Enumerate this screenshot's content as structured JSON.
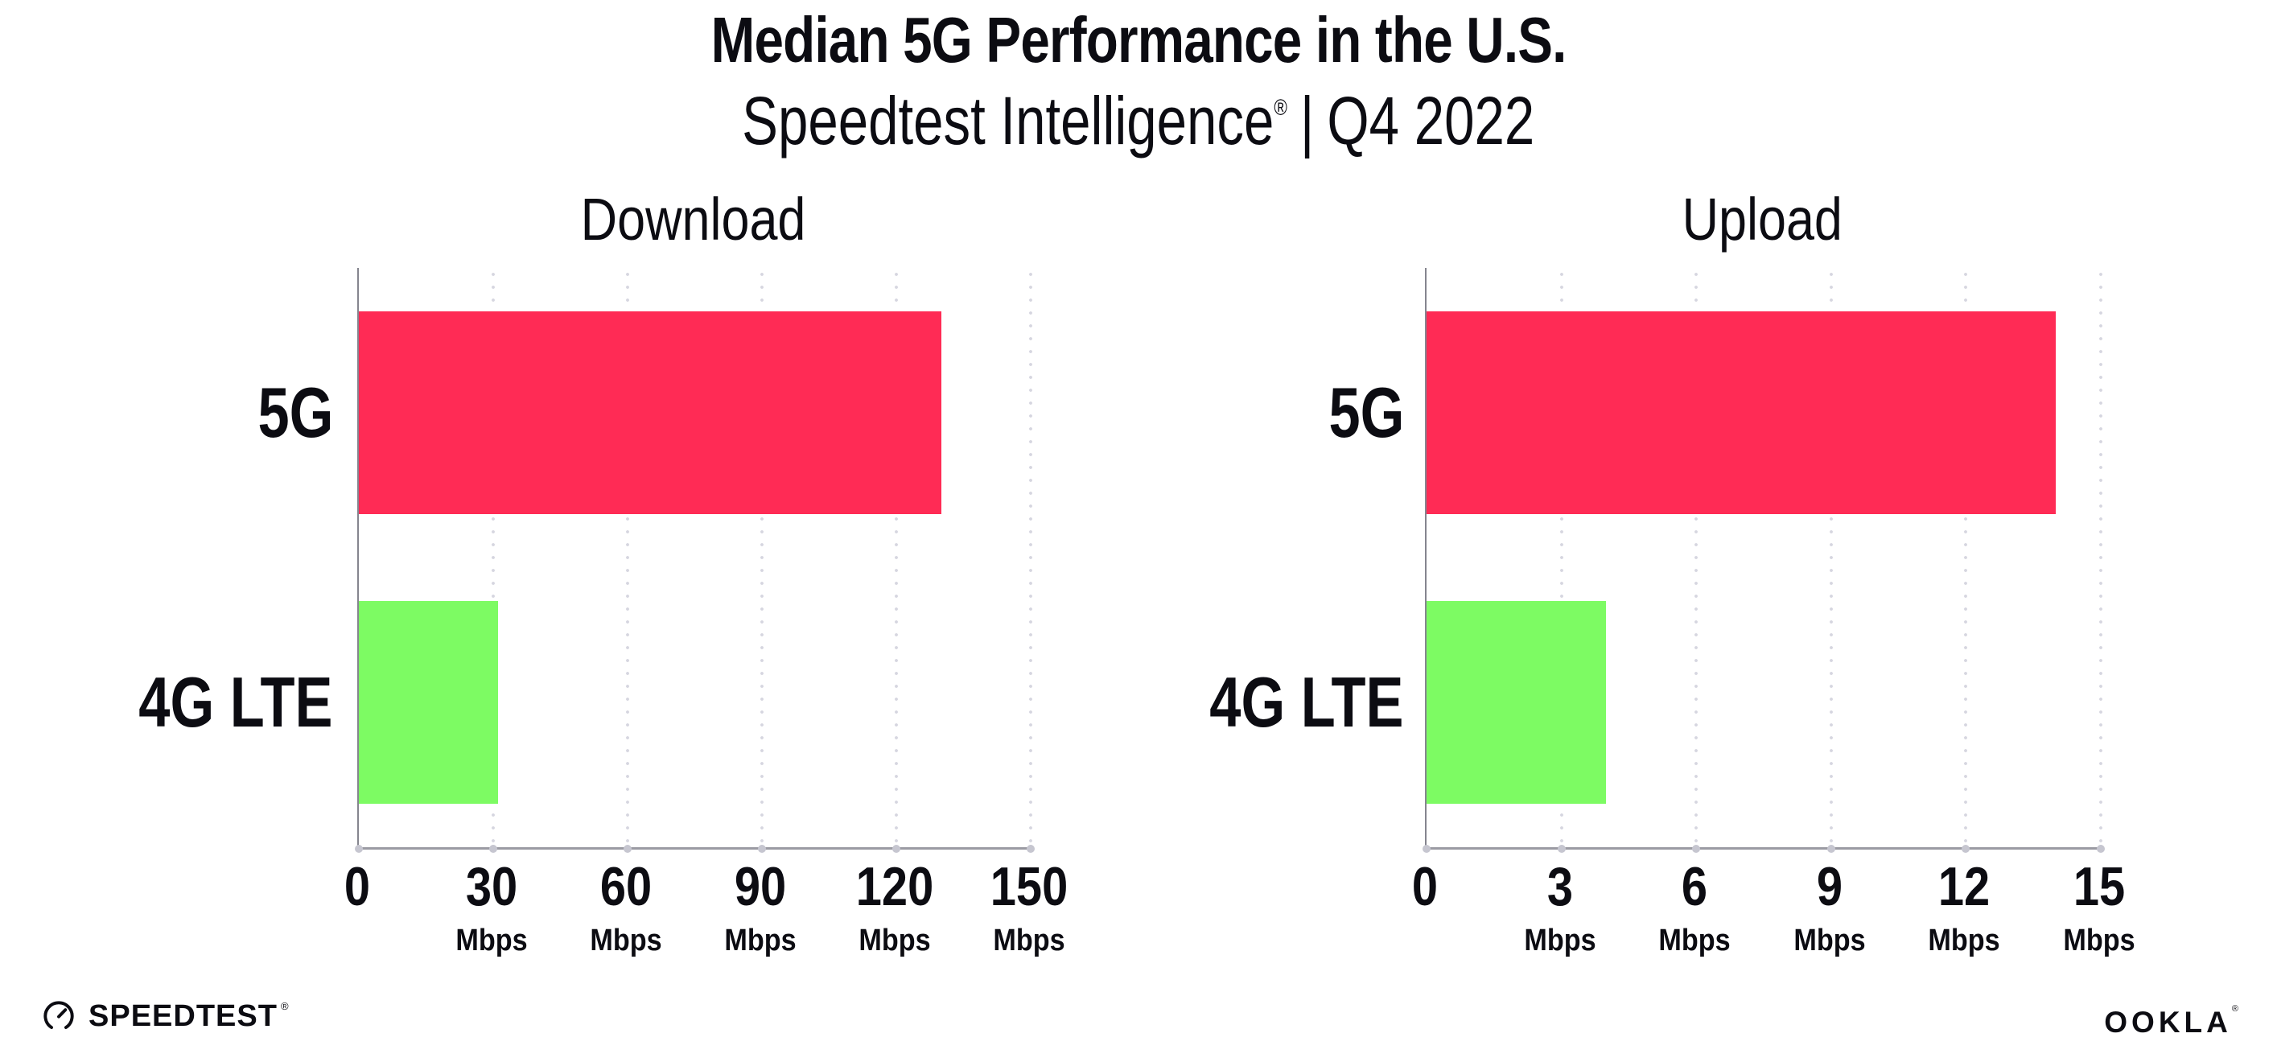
{
  "header": {
    "title": "Median 5G Performance in the U.S.",
    "subtitle_brand": "Speedtest Intelligence",
    "subtitle_reg": "®",
    "subtitle_separator": "|",
    "subtitle_period": "Q4 2022"
  },
  "footer": {
    "speedtest_icon": "gauge-icon",
    "speedtest_wordmark": "SPEEDTEST",
    "speedtest_reg": "®",
    "ookla_wordmark": "OOKLA",
    "ookla_reg": "®"
  },
  "colors": {
    "bar_5g": "#FF2B55",
    "bar_4g_lte": "#7DFB63",
    "gridline": "#D6D6E0",
    "y_axis": "#85858F",
    "x_axis": "#9B9BA3",
    "tick_dot": "#C6C6D0",
    "text": "#0C0C12",
    "background": "#FFFFFF"
  },
  "chart_data": [
    {
      "type": "bar",
      "orientation": "horizontal",
      "title": "Download",
      "categories": [
        "5G",
        "4G LTE"
      ],
      "values": [
        130,
        31
      ],
      "unit": "Mbps",
      "xlim": [
        0,
        150
      ],
      "xticks": [
        {
          "value": 0,
          "label": "0",
          "unit": ""
        },
        {
          "value": 30,
          "label": "30",
          "unit": "Mbps"
        },
        {
          "value": 60,
          "label": "60",
          "unit": "Mbps"
        },
        {
          "value": 90,
          "label": "90",
          "unit": "Mbps"
        },
        {
          "value": 120,
          "label": "120",
          "unit": "Mbps"
        },
        {
          "value": 150,
          "label": "150",
          "unit": "Mbps"
        }
      ],
      "bar_colors": [
        "#FF2B55",
        "#7DFB63"
      ],
      "grid": "dotted-vertical",
      "legend": "none",
      "xlabel": "",
      "ylabel": ""
    },
    {
      "type": "bar",
      "orientation": "horizontal",
      "title": "Upload",
      "categories": [
        "5G",
        "4G LTE"
      ],
      "values": [
        14,
        4
      ],
      "unit": "Mbps",
      "xlim": [
        0,
        15
      ],
      "xticks": [
        {
          "value": 0,
          "label": "0",
          "unit": ""
        },
        {
          "value": 3,
          "label": "3",
          "unit": "Mbps"
        },
        {
          "value": 6,
          "label": "6",
          "unit": "Mbps"
        },
        {
          "value": 9,
          "label": "9",
          "unit": "Mbps"
        },
        {
          "value": 12,
          "label": "12",
          "unit": "Mbps"
        },
        {
          "value": 15,
          "label": "15",
          "unit": "Mbps"
        }
      ],
      "bar_colors": [
        "#FF2B55",
        "#7DFB63"
      ],
      "grid": "dotted-vertical",
      "legend": "none",
      "xlabel": "",
      "ylabel": ""
    }
  ]
}
